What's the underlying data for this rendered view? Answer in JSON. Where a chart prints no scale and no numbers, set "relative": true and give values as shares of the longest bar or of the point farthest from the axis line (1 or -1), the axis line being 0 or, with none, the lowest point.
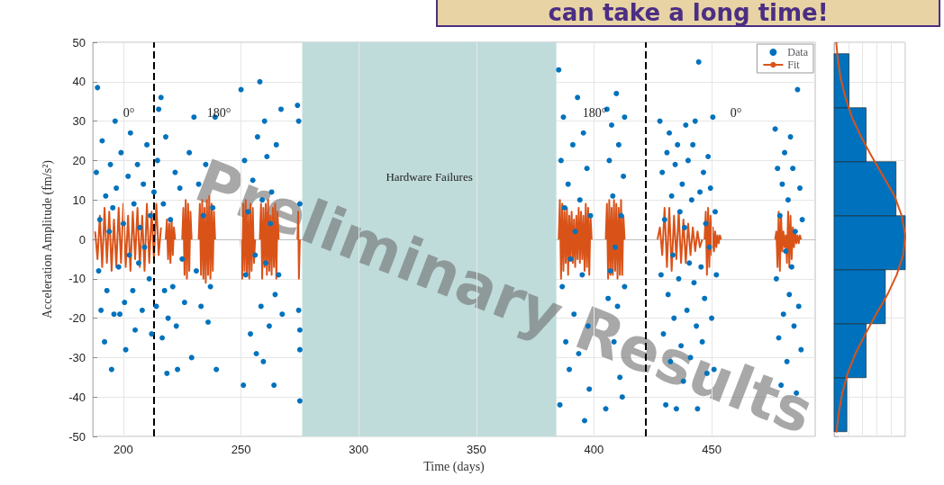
{
  "chart_data": [
    {
      "type": "scatter",
      "xlabel": "Time (days)",
      "ylabel": "Acceleration Amplitude (fm/s²)",
      "xlim": [
        187,
        494
      ],
      "ylim": [
        -50,
        50
      ],
      "xticks": [
        200,
        250,
        300,
        350,
        400,
        450
      ],
      "yticks": [
        -50,
        -40,
        -30,
        -20,
        -10,
        0,
        10,
        20,
        30,
        40,
        50
      ],
      "grid": true,
      "legend": "top right",
      "line_style": "solid",
      "series": [
        {
          "name": "Data",
          "type": "scatter",
          "marker": "circle",
          "color": "#0072bd",
          "x": [
            188.5,
            189,
            189.5,
            190,
            190.5,
            191,
            192,
            192.5,
            193,
            194,
            194.5,
            195,
            195.5,
            196,
            196.5,
            197,
            198,
            198.5,
            199,
            200,
            200.5,
            201,
            202,
            202.5,
            203,
            204,
            204.5,
            205,
            206,
            206.5,
            207,
            208,
            208.5,
            209,
            210,
            211,
            211.5,
            212,
            213,
            214,
            214.5,
            215,
            216,
            216.5,
            217,
            217.5,
            218,
            218.5,
            219,
            220,
            221,
            222,
            222.5,
            223,
            224,
            225,
            226,
            228,
            229,
            230,
            231,
            232,
            233,
            234,
            235,
            236,
            237,
            238,
            239,
            239.5,
            250,
            251,
            251.5,
            252,
            253,
            254,
            255,
            256,
            256.5,
            257,
            258,
            258.5,
            259,
            259.5,
            260,
            260.5,
            261,
            262,
            262.5,
            263,
            264,
            264.5,
            265,
            266,
            267,
            267.5,
            274,
            274.5,
            275,
            275,
            275,
            274.5,
            275,
            385,
            385.5,
            386,
            386.5,
            387,
            387.5,
            388,
            389,
            389.5,
            390,
            391,
            391.5,
            392,
            393,
            393.5,
            394,
            395,
            395.5,
            396,
            397,
            397.5,
            398,
            398.5,
            405,
            405.5,
            406,
            406.5,
            407,
            407.5,
            408,
            408.5,
            409,
            409.5,
            410,
            410.5,
            411,
            411.5,
            412,
            412.5,
            413,
            413,
            428,
            428.5,
            429,
            429.5,
            430,
            430.5,
            431,
            431.5,
            432,
            432.5,
            433,
            433.5,
            434,
            434.5,
            435,
            435.5,
            436,
            436.5,
            437,
            437.5,
            438,
            438.5,
            439,
            439.5,
            440,
            440.5,
            441,
            441.5,
            442,
            442.5,
            443,
            443.5,
            444,
            444.5,
            445,
            445.5,
            446,
            446.5,
            447,
            447.5,
            448,
            448.5,
            449,
            449.5,
            450,
            450.5,
            451,
            451.5,
            452,
            477,
            477.5,
            478,
            478.5,
            479,
            479.5,
            480,
            480.5,
            481,
            481.5,
            482,
            482.5,
            483,
            483.5,
            484,
            484.5,
            485,
            485.5,
            486,
            486.5,
            487,
            487.5,
            488,
            488.5
          ],
          "values": [
            17,
            38.5,
            -8,
            5,
            -18,
            25,
            -26,
            11,
            -13,
            2,
            19,
            -33,
            8,
            -19,
            30,
            13,
            -7,
            -19,
            22,
            4,
            -16,
            -28,
            16,
            -4,
            27,
            -13,
            9,
            -23,
            19,
            -6,
            3,
            -18,
            14,
            -2,
            24,
            -10,
            6,
            -24,
            12,
            -17,
            20,
            33,
            36,
            -25,
            9,
            -13,
            26,
            -34,
            -20,
            5,
            -12,
            17,
            -22,
            -33,
            13,
            -5,
            -16,
            22,
            -30,
            31,
            -8,
            14,
            -17,
            6,
            19,
            -21,
            -12,
            8,
            31,
            -33,
            38,
            -37,
            20,
            -9,
            7,
            -24,
            15,
            -4,
            -29,
            26,
            40,
            -17,
            10,
            -31,
            30,
            -6,
            21,
            -22,
            4,
            12,
            -37,
            -14,
            24,
            -9,
            33,
            -19,
            34,
            -18,
            9,
            -28,
            -41,
            30,
            -23,
            43,
            -42,
            20,
            -12,
            31,
            8,
            -26,
            14,
            -33,
            -5,
            24,
            -19,
            2,
            36,
            -29,
            10,
            -9,
            27,
            -46,
            18,
            -22,
            -38,
            6,
            -43,
            33,
            -15,
            20,
            -8,
            29,
            11,
            -26,
            -2,
            37,
            -17,
            24,
            -35,
            6,
            -40,
            16,
            -12,
            31,
            30,
            -9,
            17,
            -24,
            5,
            -42,
            22,
            -14,
            27,
            -31,
            11,
            -4,
            -20,
            19,
            -43,
            24,
            -10,
            7,
            -27,
            14,
            -36,
            3,
            29,
            -18,
            20,
            -6,
            -30,
            10,
            24,
            -11,
            30,
            -22,
            -43,
            45,
            12,
            -7,
            -26,
            17,
            -15,
            4,
            -34,
            21,
            -2,
            13,
            -20,
            31,
            -33,
            7,
            -9,
            28,
            -10,
            18,
            -25,
            6,
            -37,
            14,
            -19,
            22,
            -3,
            -31,
            10,
            -14,
            26,
            -7,
            18,
            -22,
            2,
            -39,
            38,
            -17,
            13,
            -28,
            5
          ]
        },
        {
          "name": "Fit",
          "type": "line",
          "marker": "none",
          "color": "#d95319",
          "x": [
            188,
            189,
            190,
            191,
            192,
            193,
            194,
            195,
            196,
            197,
            198,
            199,
            200,
            201,
            202,
            203,
            204,
            205,
            206,
            207,
            208,
            209,
            210,
            211,
            212,
            213,
            214,
            215,
            216,
            217,
            218,
            218.5,
            219,
            219.5,
            220,
            220.5,
            221,
            221.5,
            222,
            223,
            225,
            225.5,
            226,
            226.5,
            227,
            227.5,
            228,
            228.5,
            229,
            230,
            232,
            232.5,
            233,
            233.5,
            234,
            234.5,
            235,
            235.5,
            236,
            236.5,
            237,
            237.5,
            238,
            238.5,
            239,
            245,
            250,
            250.5,
            251,
            251.5,
            252,
            252.5,
            253,
            253.5,
            254,
            254.5,
            255,
            255.5,
            256,
            257,
            258,
            258.5,
            259,
            259.5,
            260,
            260.5,
            261,
            261.5,
            262,
            262.5,
            263,
            263.5,
            264,
            264.5,
            265,
            265.5,
            266,
            270,
            274,
            274.3,
            274.6,
            275,
            330,
            385,
            385.5,
            386,
            386.5,
            387,
            387.5,
            388,
            388.5,
            389,
            389.5,
            390,
            390.5,
            391,
            391.5,
            392,
            392.5,
            393,
            393.5,
            394,
            394.5,
            395,
            395.5,
            396,
            396.5,
            397,
            397.5,
            398,
            398.5,
            399,
            402,
            405,
            405.5,
            406,
            406.5,
            407,
            407.5,
            408,
            408.5,
            409,
            409.5,
            410,
            410.5,
            411,
            411.5,
            412,
            412.5,
            413,
            420,
            427,
            428,
            429,
            430,
            431,
            432,
            433,
            434,
            435,
            436,
            437,
            438,
            439,
            440,
            441,
            442,
            443,
            444,
            445,
            446,
            446.5,
            447,
            447.5,
            448,
            448.5,
            449,
            449.5,
            450,
            450.5,
            451,
            451.5,
            452,
            452.5,
            453,
            453.5,
            454,
            465,
            477,
            477.5,
            478,
            478.5,
            479,
            479.5,
            480,
            480.5,
            481,
            481.5,
            482,
            482.5,
            483,
            483.5,
            484,
            484.5,
            485,
            485.5,
            486,
            486.5,
            487,
            487.5,
            488
          ],
          "values": [
            2,
            -5,
            6,
            -7,
            8,
            -6,
            7,
            -8,
            5,
            -7,
            8,
            -6,
            9,
            -7,
            6,
            -8,
            7,
            -5,
            8,
            -7,
            6,
            -8,
            9,
            -6,
            7,
            -5,
            9,
            -4,
            3,
            null,
            0,
            5,
            -5,
            4,
            -6,
            5,
            -4,
            3,
            0,
            null,
            0,
            8,
            -9,
            10,
            -10,
            9,
            -8,
            7,
            0,
            null,
            0,
            9,
            -9,
            10,
            -10,
            8,
            -11,
            10,
            -9,
            11,
            -10,
            9,
            -8,
            7,
            0,
            null,
            0,
            -10,
            9,
            -8,
            10,
            -9,
            7,
            -10,
            9,
            -8,
            8,
            -6,
            0,
            null,
            0,
            9,
            -10,
            8,
            -7,
            9,
            -9,
            10,
            -8,
            6,
            -9,
            8,
            -7,
            9,
            -10,
            7,
            0,
            null,
            0,
            7,
            -10,
            0,
            null,
            0,
            10,
            -10,
            9,
            -8,
            7,
            -6,
            8,
            -9,
            6,
            -5,
            7,
            -6,
            5,
            -7,
            6,
            -5,
            8,
            -6,
            7,
            -5,
            6,
            -8,
            9,
            -7,
            8,
            -9,
            6,
            0,
            null,
            0,
            9,
            -10,
            10,
            -9,
            8,
            -9,
            10,
            -8,
            9,
            -10,
            8,
            -9,
            10,
            -9,
            6,
            0,
            null,
            0,
            3,
            -4,
            8,
            -7,
            8,
            -8,
            6,
            -5,
            7,
            -6,
            5,
            -6,
            4,
            -4,
            3,
            -3,
            2,
            -2,
            0,
            null,
            0,
            7,
            -9,
            8,
            -7,
            6,
            -4,
            3,
            -3,
            2,
            -2,
            1,
            -1,
            1,
            0,
            null,
            0,
            2,
            -7,
            7,
            -8,
            6,
            -3,
            2,
            -2,
            1,
            -6,
            7,
            -7,
            6,
            -5,
            3,
            -2,
            2,
            -1,
            1,
            -1,
            1,
            0
          ]
        }
      ],
      "ref_lines": [
        {
          "axis": "x",
          "value": 213,
          "color": "#000000",
          "line_style": "dashed"
        },
        {
          "axis": "x",
          "value": 422,
          "color": "#000000",
          "line_style": "dashed"
        }
      ],
      "bands": [
        {
          "axis": "x",
          "from": 276,
          "to": 384,
          "label": "Hardware Failures",
          "color": "#bfdcdb"
        }
      ],
      "annotations": [
        "can take a long time!",
        "Preliminary Results",
        "0°",
        "180°",
        "180°",
        "0°"
      ]
    },
    {
      "type": "histogram",
      "orientation": "horizontal",
      "relative": true,
      "color": "#0072bd",
      "bins": [
        -48.8,
        -35.1,
        -21.4,
        -7.7,
        6.0,
        19.7,
        33.4,
        47.1
      ],
      "values": [
        0.18,
        0.45,
        0.72,
        1,
        0.87,
        0.45,
        0.21
      ],
      "ylim": [
        -50,
        50
      ],
      "tick_labels": false,
      "grid": true,
      "series": [
        {
          "type": "line",
          "color": "#d95319",
          "x": [
            -49,
            -44,
            -39,
            -34,
            -29,
            -24,
            -19,
            -14,
            -9,
            -4,
            1,
            6,
            11,
            16,
            21,
            26,
            31,
            36,
            41,
            46,
            50
          ],
          "values": [
            0.034,
            0.065,
            0.115,
            0.19,
            0.3,
            0.44,
            0.59,
            0.75,
            0.88,
            0.97,
            1,
            0.95,
            0.85,
            0.69,
            0.53,
            0.38,
            0.25,
            0.16,
            0.09,
            0.05,
            0.03
          ]
        }
      ]
    }
  ]
}
